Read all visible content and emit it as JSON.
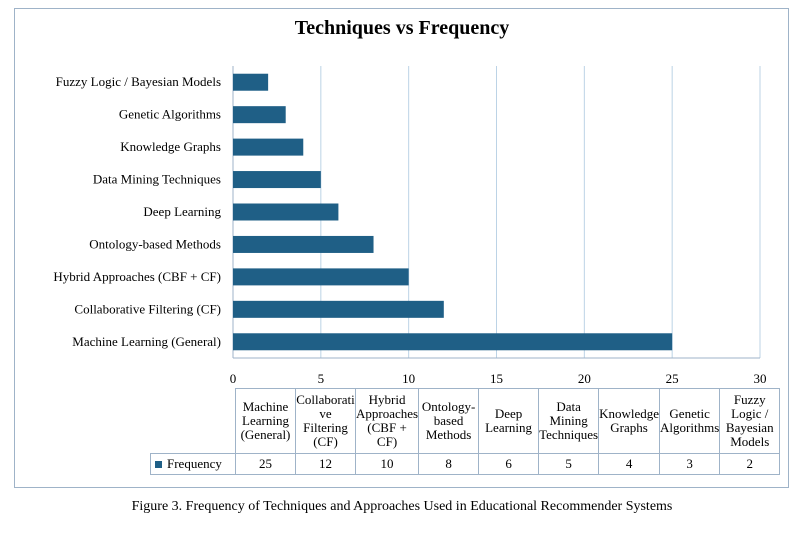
{
  "caption": "Figure 3. Frequency of Techniques and Approaches Used in Educational Recommender Systems",
  "colors": {
    "bar": "#1f5f86",
    "grid": "#bcd3e6",
    "axis": "#9fb3c8"
  },
  "chart_data": {
    "type": "bar",
    "orientation": "horizontal",
    "title": "Techniques vs Frequency",
    "xlabel": "",
    "ylabel": "",
    "xlim": [
      0,
      30
    ],
    "xticks": [
      0,
      5,
      10,
      15,
      20,
      25,
      30
    ],
    "grid": true,
    "series": [
      {
        "name": "Frequency",
        "values": [
          25,
          12,
          10,
          8,
          6,
          5,
          4,
          3,
          2
        ]
      }
    ],
    "categories": [
      "Machine Learning (General)",
      "Collaborative Filtering (CF)",
      "Hybrid Approaches (CBF + CF)",
      "Ontology-based Methods",
      "Deep Learning",
      "Data Mining Techniques",
      "Knowledge Graphs",
      "Genetic Algorithms",
      "Fuzzy Logic / Bayesian Models"
    ],
    "table_headers": [
      "Machine Learning (General)",
      "Collaborati ve Filtering (CF)",
      "Hybrid Approaches (CBF + CF)",
      "Ontology- based Methods",
      "Deep Learning",
      "Data Mining Techniques",
      "Knowledge Graphs",
      "Genetic Algorithms",
      "Fuzzy Logic / Bayesian Models"
    ],
    "legend": "bottom (data table)"
  }
}
